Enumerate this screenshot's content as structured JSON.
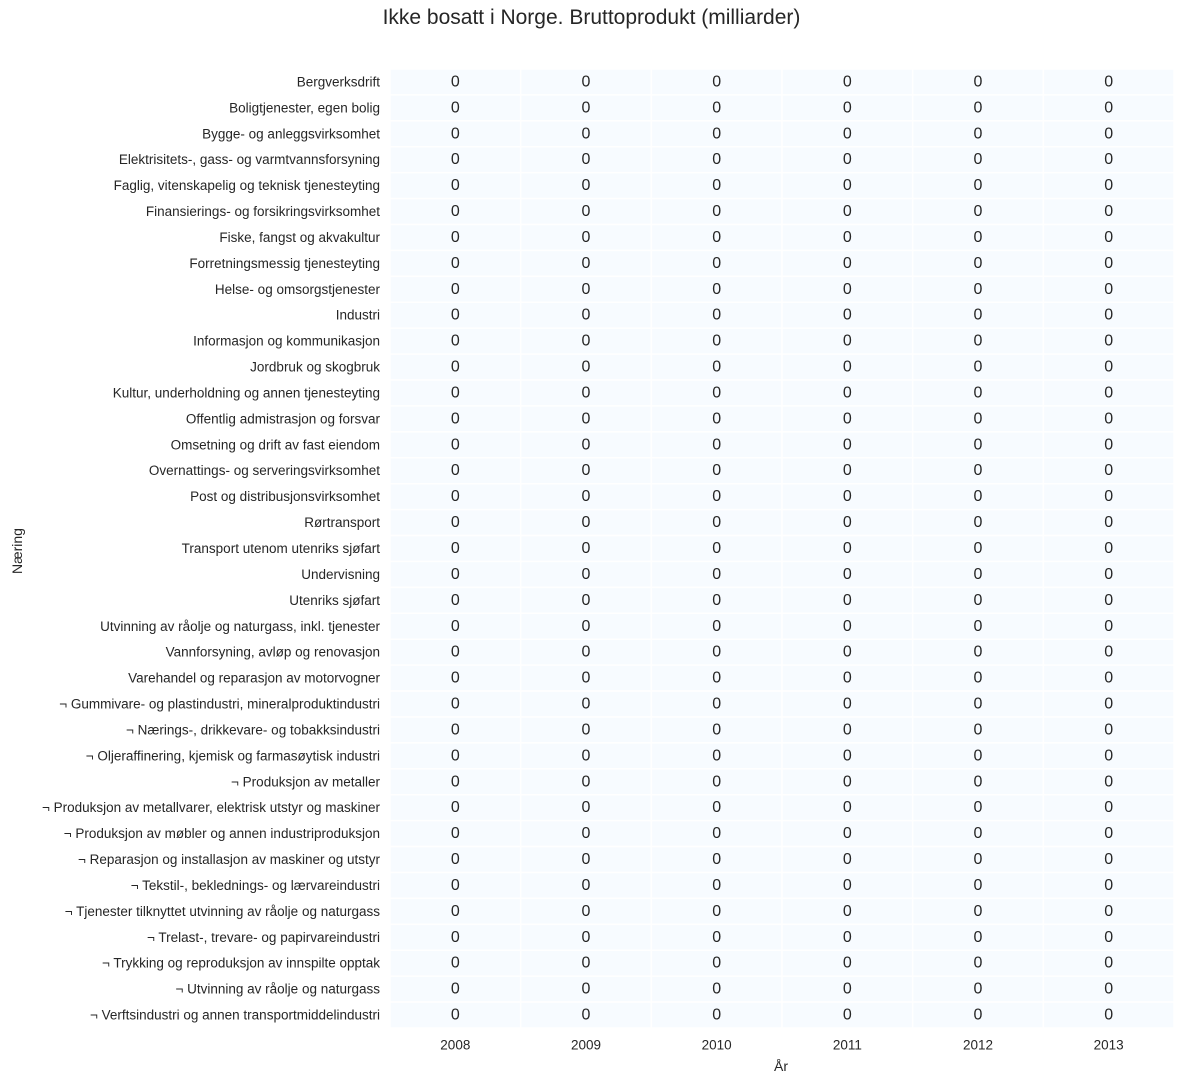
{
  "chart_data": {
    "type": "heatmap",
    "title": "Ikke bosatt i Norge. Bruttoprodukt (milliarder)",
    "xlabel": "År",
    "ylabel": "Næring",
    "x": [
      "2008",
      "2009",
      "2010",
      "2011",
      "2012",
      "2013"
    ],
    "y": [
      "Bergverksdrift",
      "Boligtjenester, egen bolig",
      "Bygge- og anleggsvirksomhet",
      "Elektrisitets-, gass- og varmtvannsforsyning",
      "Faglig, vitenskapelig og teknisk tjenesteyting",
      "Finansierings- og forsikringsvirksomhet",
      "Fiske, fangst og akvakultur",
      "Forretningsmessig tjenesteyting",
      "Helse- og omsorgstjenester",
      "Industri",
      "Informasjon og kommunikasjon",
      "Jordbruk og skogbruk",
      "Kultur, underholdning og annen tjenesteyting",
      "Offentlig admistrasjon og forsvar",
      "Omsetning og drift av fast eiendom",
      "Overnattings- og serveringsvirksomhet",
      "Post og distribusjonsvirksomhet",
      "Rørtransport",
      "Transport utenom utenriks sjøfart",
      "Undervisning",
      "Utenriks sjøfart",
      "Utvinning av råolje og naturgass, inkl. tjenester",
      "Vannforsyning, avløp og renovasjon",
      "Varehandel og reparasjon av motorvogner",
      "¬ Gummivare- og plastindustri, mineralproduktindustri",
      "¬ Nærings-, drikkevare- og tobakksindustri",
      "¬ Oljeraffinering, kjemisk og farmasøytisk industri",
      "¬ Produksjon av metaller",
      "¬ Produksjon av metallvarer, elektrisk utstyr og maskiner",
      "¬ Produksjon av møbler og annen industriproduksjon",
      "¬ Reparasjon og installasjon av maskiner og utstyr",
      "¬ Tekstil-, beklednings- og lærvareindustri",
      "¬ Tjenester tilknyttet utvinning av råolje og naturgass",
      "¬ Trelast-, trevare- og papirvareindustri",
      "¬ Trykking og reproduksjon av innspilte opptak",
      "¬ Utvinning av råolje og naturgass",
      "¬ Verftsindustri og annen transportmiddelindustri"
    ],
    "values": [
      [
        0,
        0,
        0,
        0,
        0,
        0
      ],
      [
        0,
        0,
        0,
        0,
        0,
        0
      ],
      [
        0,
        0,
        0,
        0,
        0,
        0
      ],
      [
        0,
        0,
        0,
        0,
        0,
        0
      ],
      [
        0,
        0,
        0,
        0,
        0,
        0
      ],
      [
        0,
        0,
        0,
        0,
        0,
        0
      ],
      [
        0,
        0,
        0,
        0,
        0,
        0
      ],
      [
        0,
        0,
        0,
        0,
        0,
        0
      ],
      [
        0,
        0,
        0,
        0,
        0,
        0
      ],
      [
        0,
        0,
        0,
        0,
        0,
        0
      ],
      [
        0,
        0,
        0,
        0,
        0,
        0
      ],
      [
        0,
        0,
        0,
        0,
        0,
        0
      ],
      [
        0,
        0,
        0,
        0,
        0,
        0
      ],
      [
        0,
        0,
        0,
        0,
        0,
        0
      ],
      [
        0,
        0,
        0,
        0,
        0,
        0
      ],
      [
        0,
        0,
        0,
        0,
        0,
        0
      ],
      [
        0,
        0,
        0,
        0,
        0,
        0
      ],
      [
        0,
        0,
        0,
        0,
        0,
        0
      ],
      [
        0,
        0,
        0,
        0,
        0,
        0
      ],
      [
        0,
        0,
        0,
        0,
        0,
        0
      ],
      [
        0,
        0,
        0,
        0,
        0,
        0
      ],
      [
        0,
        0,
        0,
        0,
        0,
        0
      ],
      [
        0,
        0,
        0,
        0,
        0,
        0
      ],
      [
        0,
        0,
        0,
        0,
        0,
        0
      ],
      [
        0,
        0,
        0,
        0,
        0,
        0
      ],
      [
        0,
        0,
        0,
        0,
        0,
        0
      ],
      [
        0,
        0,
        0,
        0,
        0,
        0
      ],
      [
        0,
        0,
        0,
        0,
        0,
        0
      ],
      [
        0,
        0,
        0,
        0,
        0,
        0
      ],
      [
        0,
        0,
        0,
        0,
        0,
        0
      ],
      [
        0,
        0,
        0,
        0,
        0,
        0
      ],
      [
        0,
        0,
        0,
        0,
        0,
        0
      ],
      [
        0,
        0,
        0,
        0,
        0,
        0
      ],
      [
        0,
        0,
        0,
        0,
        0,
        0
      ],
      [
        0,
        0,
        0,
        0,
        0,
        0
      ],
      [
        0,
        0,
        0,
        0,
        0,
        0
      ],
      [
        0,
        0,
        0,
        0,
        0,
        0
      ]
    ],
    "cell_color": "#f7fbff",
    "cell_border_color": "#ffffff",
    "annotated": true,
    "colorbar": false
  }
}
